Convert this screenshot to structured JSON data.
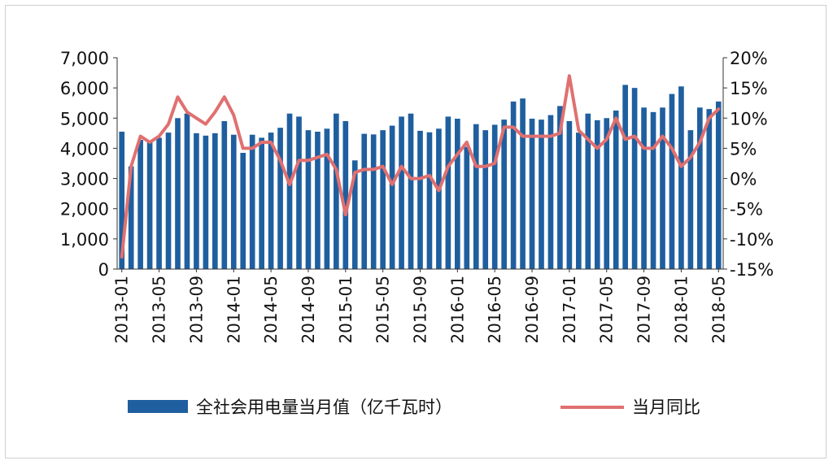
{
  "chart_data": {
    "type": "bar+line",
    "title": "",
    "x_tick_labels": [
      "2013-01",
      "2013-05",
      "2013-09",
      "2014-01",
      "2014-05",
      "2014-09",
      "2015-01",
      "2015-05",
      "2015-09",
      "2016-01",
      "2016-05",
      "2016-09",
      "2017-01",
      "2017-05",
      "2017-09",
      "2018-01",
      "2018-05"
    ],
    "y_left": {
      "lim": [
        0,
        7000
      ],
      "ticks": [
        "0",
        "1,000",
        "2,000",
        "3,000",
        "4,000",
        "5,000",
        "6,000",
        "7,000"
      ]
    },
    "y_right": {
      "lim": [
        -15,
        20
      ],
      "ticks": [
        "-15%",
        "-10%",
        "-5%",
        "0%",
        "5%",
        "10%",
        "15%",
        "20%"
      ]
    },
    "categories": [
      "2013-01",
      "2013-02",
      "2013-03",
      "2013-04",
      "2013-05",
      "2013-06",
      "2013-07",
      "2013-08",
      "2013-09",
      "2013-10",
      "2013-11",
      "2013-12",
      "2014-01",
      "2014-02",
      "2014-03",
      "2014-04",
      "2014-05",
      "2014-06",
      "2014-07",
      "2014-08",
      "2014-09",
      "2014-10",
      "2014-11",
      "2014-12",
      "2015-01",
      "2015-02",
      "2015-03",
      "2015-04",
      "2015-05",
      "2015-06",
      "2015-07",
      "2015-08",
      "2015-09",
      "2015-10",
      "2015-11",
      "2015-12",
      "2016-01",
      "2016-02",
      "2016-03",
      "2016-04",
      "2016-05",
      "2016-06",
      "2016-07",
      "2016-08",
      "2016-09",
      "2016-10",
      "2016-11",
      "2016-12",
      "2017-01",
      "2017-02",
      "2017-03",
      "2017-04",
      "2017-05",
      "2017-06",
      "2017-07",
      "2017-08",
      "2017-09",
      "2017-10",
      "2017-11",
      "2017-12",
      "2018-01",
      "2018-02",
      "2018-03",
      "2018-04",
      "2018-05"
    ],
    "series": [
      {
        "name": "全社会用电量当月值（亿千瓦时）",
        "type": "bar",
        "axis": "left",
        "color": "#1f5f9f",
        "values": [
          4550,
          3400,
          4280,
          4200,
          4350,
          4520,
          5000,
          5150,
          4500,
          4420,
          4500,
          4900,
          4450,
          3850,
          4450,
          4350,
          4520,
          4680,
          5150,
          5050,
          4600,
          4550,
          4650,
          5150,
          4900,
          3600,
          4480,
          4460,
          4600,
          4750,
          5050,
          5150,
          4580,
          4530,
          4650,
          5050,
          4980,
          4050,
          4800,
          4600,
          4780,
          4950,
          5550,
          5650,
          4980,
          4950,
          5100,
          5400,
          4900,
          4520,
          5150,
          4930,
          5000,
          5250,
          6100,
          6000,
          5350,
          5200,
          5350,
          5800,
          6050,
          4600,
          5350,
          5300,
          5550
        ]
      },
      {
        "name": "当月同比",
        "type": "line",
        "axis": "right",
        "color": "#e07070",
        "values": [
          -13,
          2,
          7,
          6,
          7,
          9,
          13.5,
          11,
          10,
          9,
          11,
          13.5,
          10.5,
          5,
          5,
          6,
          6,
          3,
          -1,
          3,
          3,
          3.5,
          4,
          1.5,
          -6,
          1,
          1.5,
          1.5,
          2,
          -1,
          2,
          0,
          0,
          0.5,
          -2,
          2,
          4,
          6,
          2,
          2,
          2.5,
          8.5,
          8.5,
          7,
          7,
          7,
          7,
          7.5,
          17,
          8,
          6.5,
          5,
          6.5,
          10,
          6.5,
          7,
          5,
          5,
          7,
          5,
          2,
          3.5,
          6,
          10,
          11.5
        ]
      }
    ],
    "legend": {
      "placement": "bottom"
    }
  }
}
